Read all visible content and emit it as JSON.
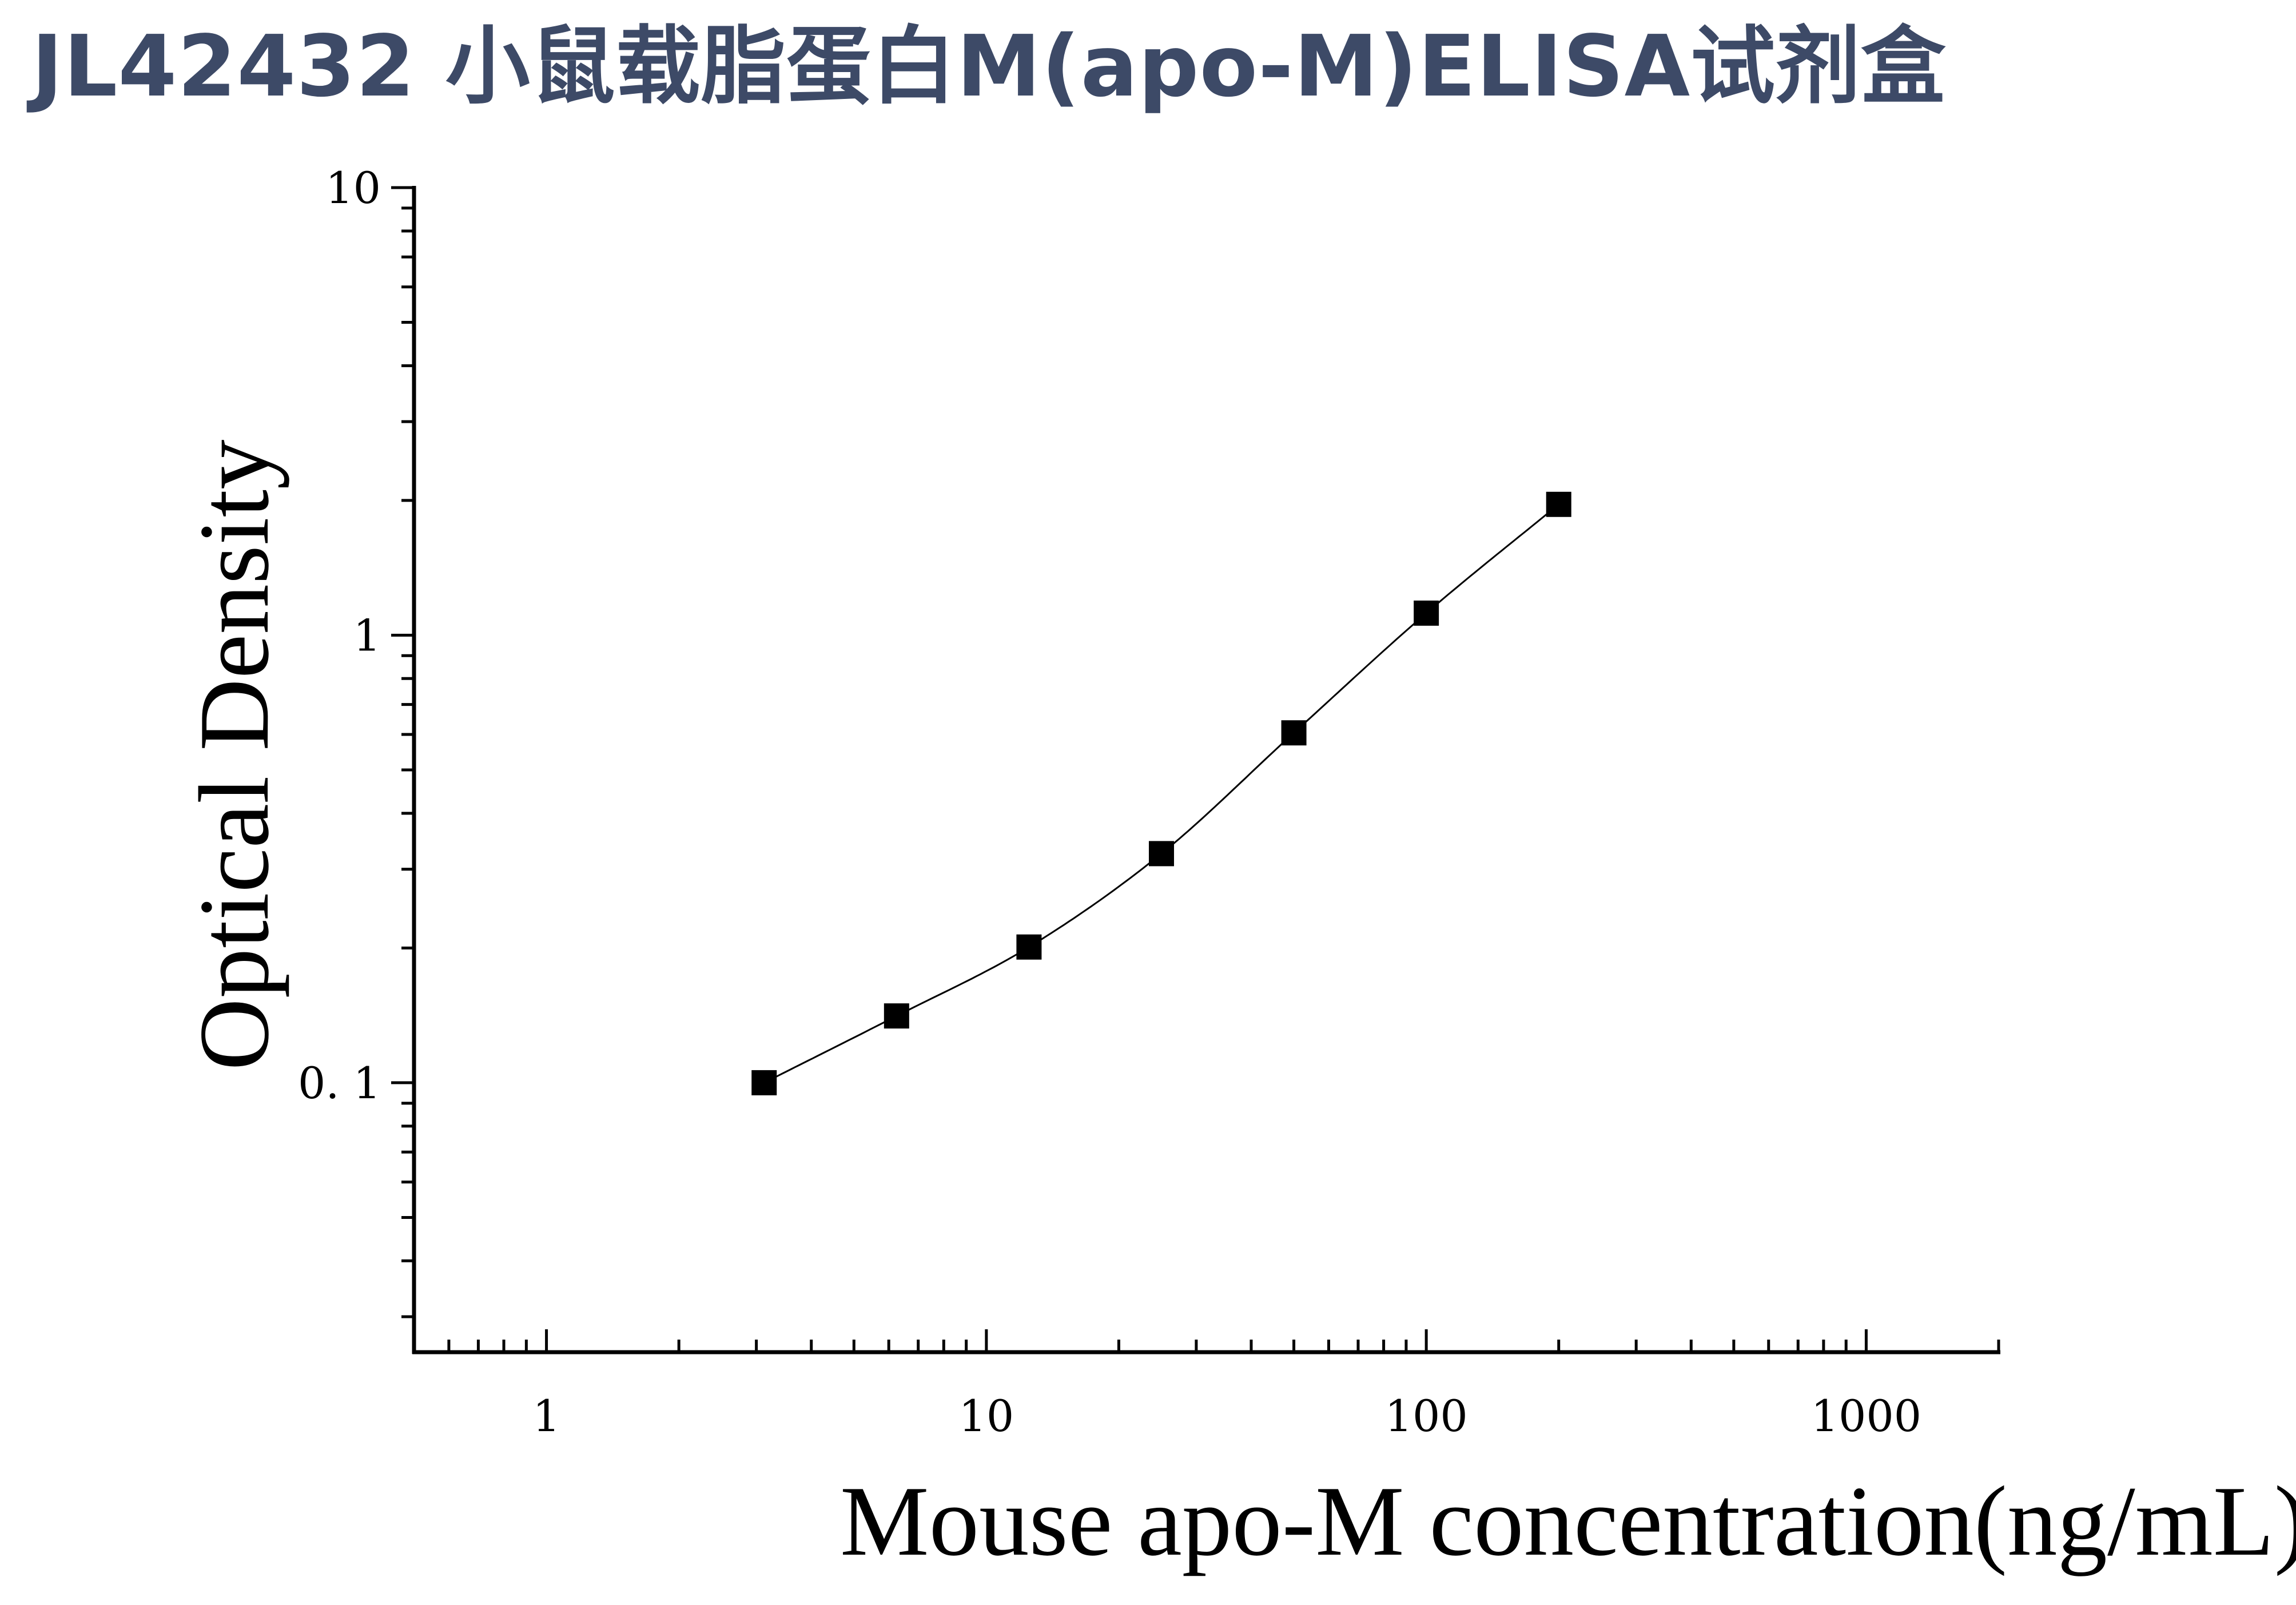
{
  "page": {
    "title": "JL42432 小鼠载脂蛋白M(apo-M)ELISA试剂盒",
    "title_color": "#3d4a67"
  },
  "chart_data": {
    "type": "scatter",
    "title": "JL42432 小鼠载脂蛋白M(apo-M)ELISA试剂盒",
    "xlabel": "Mouse apo-M concentration(ng/mL)",
    "ylabel": "Optical Density",
    "x_scale": "log",
    "y_scale": "log",
    "xlim": [
      0.5,
      2000
    ],
    "ylim": [
      0.025,
      10
    ],
    "x_ticks": [
      1,
      10,
      100,
      1000
    ],
    "x_tick_labels": [
      "1",
      "10",
      "100",
      "1000"
    ],
    "y_ticks": [
      0.1,
      1,
      10
    ],
    "y_tick_labels": [
      "0. 1",
      "1",
      "10"
    ],
    "grid": false,
    "legend": "none",
    "series": [
      {
        "marker": "square",
        "color": "#000000",
        "x": [
          3.125,
          6.25,
          12.5,
          25,
          50,
          100,
          200
        ],
        "y": [
          0.1,
          0.141,
          0.201,
          0.325,
          0.605,
          1.12,
          1.96
        ]
      }
    ],
    "fit_curve": {
      "type": "smooth",
      "color": "#000000"
    }
  }
}
